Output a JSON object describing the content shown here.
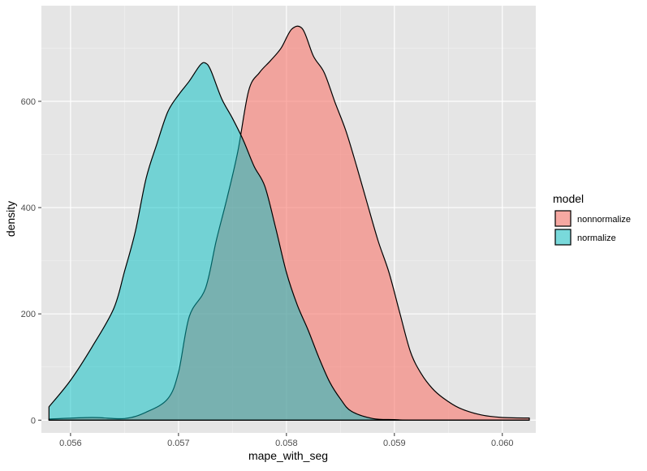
{
  "chart_data": {
    "type": "area",
    "title": "",
    "xlabel": "mape_with_seg",
    "ylabel": "density",
    "xlim": [
      0.05573,
      0.06031
    ],
    "ylim": [
      -24,
      780
    ],
    "x_ticks": [
      0.056,
      0.057,
      0.058,
      0.059,
      0.06
    ],
    "x_tick_labels": [
      "0.056",
      "0.057",
      "0.058",
      "0.059",
      "0.060"
    ],
    "y_ticks": [
      0,
      200,
      400,
      600
    ],
    "y_tick_labels": [
      "0",
      "200",
      "400",
      "600"
    ],
    "grid": true,
    "panel_background": "#E5E5E5",
    "legend": {
      "title": "model",
      "position": "right"
    },
    "series": [
      {
        "name": "nonnormalize",
        "fill": "#F8766D",
        "opacity": 0.6,
        "x": [
          0.0558,
          0.0562,
          0.0565,
          0.0567,
          0.0569,
          0.057,
          0.0571,
          0.05725,
          0.05735,
          0.05745,
          0.05755,
          0.05765,
          0.05775,
          0.05785,
          0.05795,
          0.05805,
          0.05815,
          0.05825,
          0.05835,
          0.05845,
          0.05855,
          0.05865,
          0.05875,
          0.05885,
          0.05895,
          0.05905,
          0.05915,
          0.05925,
          0.05935,
          0.05945,
          0.0596,
          0.0598,
          0.06,
          0.06025
        ],
        "y": [
          2,
          5,
          3,
          15,
          40,
          90,
          195,
          248,
          338,
          418,
          506,
          620,
          654,
          676,
          700,
          736,
          736,
          685,
          654,
          598,
          545,
          478,
          407,
          337,
          278,
          202,
          128,
          87,
          60,
          42,
          23,
          10,
          5,
          4
        ]
      },
      {
        "name": "normalize",
        "fill": "#00BFC4",
        "opacity": 0.5,
        "x": [
          0.0558,
          0.056,
          0.0562,
          0.0564,
          0.0565,
          0.0566,
          0.0567,
          0.0568,
          0.0569,
          0.057,
          0.0571,
          0.0572,
          0.05725,
          0.0573,
          0.0574,
          0.0575,
          0.0576,
          0.0577,
          0.0578,
          0.0579,
          0.058,
          0.0581,
          0.0582,
          0.0583,
          0.0584,
          0.0585,
          0.0586,
          0.0588,
          0.059,
          0.0592,
          0.06,
          0.06025
        ],
        "y": [
          25,
          75,
          138,
          210,
          280,
          355,
          455,
          520,
          580,
          612,
          638,
          668,
          672,
          658,
          605,
          568,
          527,
          478,
          440,
          362,
          278,
          217,
          170,
          118,
          72,
          40,
          17,
          3,
          1,
          0,
          0,
          0
        ]
      }
    ]
  }
}
